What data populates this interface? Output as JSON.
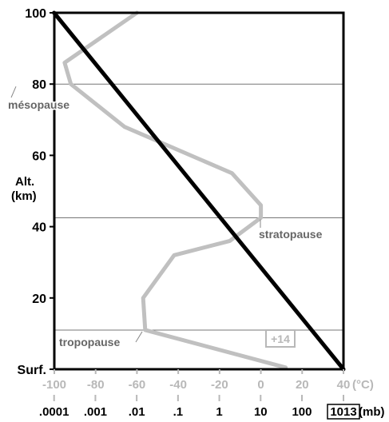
{
  "chart_data": {
    "type": "line",
    "ylabel": [
      "Alt.",
      "(km)"
    ],
    "ylim": [
      0,
      100
    ],
    "y_ticks": [
      {
        "value": 100,
        "label": "100"
      },
      {
        "value": 80,
        "label": "80"
      },
      {
        "value": 60,
        "label": "60"
      },
      {
        "value": 40,
        "label": "40"
      },
      {
        "value": 20,
        "label": "20"
      },
      {
        "value": 0,
        "label": "Surf."
      }
    ],
    "temperature_axis": {
      "unit": "(°C)",
      "xlim": [
        -100,
        40
      ],
      "ticks": [
        -100,
        -80,
        -60,
        -40,
        -20,
        0,
        20,
        40
      ],
      "tick_labels": [
        "-100",
        "-80",
        "-60",
        "-40",
        "-20",
        "0",
        "20",
        "40"
      ]
    },
    "pressure_axis": {
      "unit": "(mb)",
      "ticks": [
        "1013",
        "100",
        "10",
        "1",
        ".1",
        ".01",
        ".001",
        ".0001"
      ],
      "highlighted": "1013"
    },
    "layers": [
      {
        "name": "tropopause",
        "altitude_km": 11
      },
      {
        "name": "stratopause",
        "altitude_km": 42.5
      },
      {
        "name": "mésopause",
        "altitude_km": 80
      }
    ],
    "series": [
      {
        "kind": "temperature",
        "color": "#c0c0c0",
        "points": [
          {
            "t": 12,
            "alt": 0.5
          },
          {
            "t": -56,
            "alt": 11
          },
          {
            "t": -57,
            "alt": 20
          },
          {
            "t": -42,
            "alt": 32
          },
          {
            "t": -15,
            "alt": 36
          },
          {
            "t": 0,
            "alt": 42.5
          },
          {
            "t": 0,
            "alt": 46
          },
          {
            "t": -14,
            "alt": 55
          },
          {
            "t": -66,
            "alt": 68
          },
          {
            "t": -92,
            "alt": 80
          },
          {
            "t": -95,
            "alt": 86
          },
          {
            "t": -60,
            "alt": 100
          }
        ]
      },
      {
        "kind": "pressure",
        "color": "#000000",
        "points": [
          {
            "p": "0.0001",
            "alt": 100
          },
          {
            "p": "1013",
            "alt": 0
          }
        ]
      }
    ],
    "annotations": [
      {
        "text": "+14",
        "boxed": true
      }
    ]
  }
}
